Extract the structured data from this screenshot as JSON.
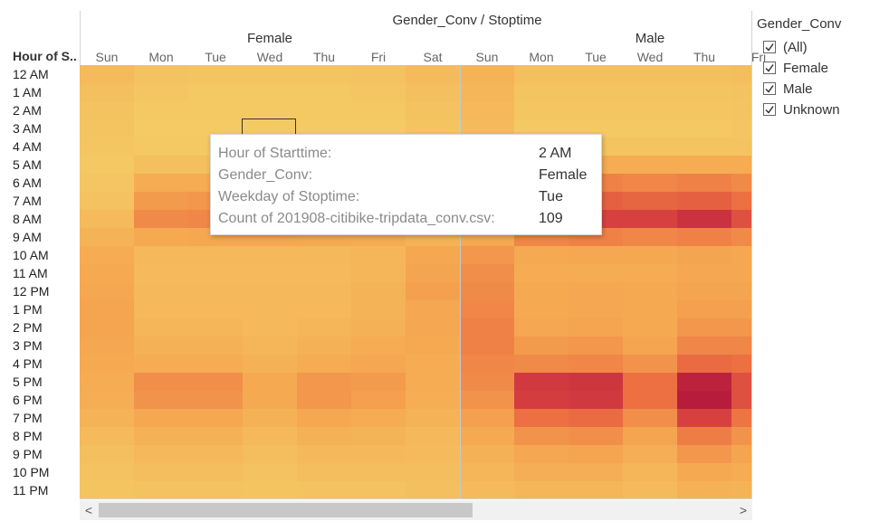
{
  "chart_data": {
    "type": "heatmap",
    "title": "Gender_Conv / Stoptime",
    "row_axis_label": "Hour of S..",
    "groups": [
      {
        "name": "Female",
        "columns": [
          "Sun",
          "Mon",
          "Tue",
          "Wed",
          "Thu",
          "Fri",
          "Sat"
        ]
      },
      {
        "name": "Male",
        "columns": [
          "Sun",
          "Mon",
          "Tue",
          "Wed",
          "Thu",
          "Fri"
        ]
      }
    ],
    "rows": [
      "12 AM",
      "1 AM",
      "2 AM",
      "3 AM",
      "4 AM",
      "5 AM",
      "6 AM",
      "7 AM",
      "8 AM",
      "9 AM",
      "10 AM",
      "11 AM",
      "12 PM",
      "1 PM",
      "2 PM",
      "3 PM",
      "4 PM",
      "5 PM",
      "6 PM",
      "7 PM",
      "8 PM",
      "9 PM",
      "10 PM",
      "11 PM"
    ],
    "intensity_scale": "0 = light yellow (low count), 1 = dark red (high count)",
    "intensity": [
      [
        0.18,
        0.12,
        0.1,
        0.1,
        0.1,
        0.12,
        0.18,
        0.25,
        0.14,
        0.14,
        0.14,
        0.14,
        0.16
      ],
      [
        0.14,
        0.08,
        0.07,
        0.07,
        0.07,
        0.08,
        0.14,
        0.22,
        0.1,
        0.1,
        0.1,
        0.1,
        0.12
      ],
      [
        0.12,
        0.06,
        0.06,
        0.06,
        0.06,
        0.06,
        0.12,
        0.2,
        0.08,
        0.08,
        0.08,
        0.08,
        0.1
      ],
      [
        0.1,
        0.05,
        0.05,
        0.05,
        0.05,
        0.05,
        0.1,
        0.18,
        0.07,
        0.07,
        0.07,
        0.07,
        0.08
      ],
      [
        0.08,
        0.06,
        0.06,
        0.06,
        0.06,
        0.06,
        0.08,
        0.15,
        0.1,
        0.1,
        0.1,
        0.1,
        0.1
      ],
      [
        0.07,
        0.14,
        0.14,
        0.14,
        0.14,
        0.14,
        0.07,
        0.14,
        0.3,
        0.3,
        0.3,
        0.3,
        0.3
      ],
      [
        0.08,
        0.3,
        0.3,
        0.3,
        0.3,
        0.3,
        0.08,
        0.16,
        0.48,
        0.52,
        0.5,
        0.52,
        0.48
      ],
      [
        0.12,
        0.4,
        0.42,
        0.42,
        0.4,
        0.38,
        0.12,
        0.2,
        0.62,
        0.66,
        0.64,
        0.66,
        0.6
      ],
      [
        0.18,
        0.48,
        0.5,
        0.5,
        0.48,
        0.45,
        0.18,
        0.24,
        0.76,
        0.78,
        0.78,
        0.86,
        0.72
      ],
      [
        0.24,
        0.32,
        0.34,
        0.34,
        0.32,
        0.3,
        0.24,
        0.32,
        0.5,
        0.52,
        0.5,
        0.52,
        0.48
      ],
      [
        0.3,
        0.2,
        0.2,
        0.2,
        0.2,
        0.22,
        0.34,
        0.42,
        0.32,
        0.34,
        0.34,
        0.36,
        0.34
      ],
      [
        0.32,
        0.18,
        0.18,
        0.18,
        0.18,
        0.22,
        0.36,
        0.46,
        0.3,
        0.3,
        0.3,
        0.34,
        0.34
      ],
      [
        0.34,
        0.2,
        0.2,
        0.2,
        0.2,
        0.24,
        0.38,
        0.48,
        0.32,
        0.34,
        0.32,
        0.36,
        0.36
      ],
      [
        0.36,
        0.2,
        0.2,
        0.2,
        0.2,
        0.24,
        0.34,
        0.5,
        0.32,
        0.34,
        0.32,
        0.38,
        0.38
      ],
      [
        0.36,
        0.22,
        0.22,
        0.2,
        0.22,
        0.26,
        0.34,
        0.52,
        0.34,
        0.36,
        0.32,
        0.42,
        0.42
      ],
      [
        0.34,
        0.26,
        0.26,
        0.22,
        0.26,
        0.3,
        0.32,
        0.52,
        0.4,
        0.42,
        0.36,
        0.5,
        0.5
      ],
      [
        0.32,
        0.3,
        0.3,
        0.26,
        0.3,
        0.34,
        0.3,
        0.5,
        0.48,
        0.5,
        0.44,
        0.62,
        0.6
      ],
      [
        0.3,
        0.46,
        0.46,
        0.32,
        0.42,
        0.4,
        0.3,
        0.48,
        0.82,
        0.84,
        0.6,
        0.96,
        0.72
      ],
      [
        0.28,
        0.44,
        0.44,
        0.32,
        0.42,
        0.38,
        0.28,
        0.44,
        0.8,
        0.82,
        0.6,
        1.0,
        0.72
      ],
      [
        0.24,
        0.34,
        0.34,
        0.26,
        0.34,
        0.3,
        0.24,
        0.38,
        0.6,
        0.62,
        0.46,
        0.78,
        0.58
      ],
      [
        0.18,
        0.26,
        0.26,
        0.2,
        0.26,
        0.24,
        0.2,
        0.32,
        0.44,
        0.46,
        0.36,
        0.54,
        0.44
      ],
      [
        0.14,
        0.2,
        0.2,
        0.16,
        0.2,
        0.2,
        0.18,
        0.26,
        0.34,
        0.36,
        0.28,
        0.42,
        0.36
      ],
      [
        0.12,
        0.16,
        0.16,
        0.12,
        0.16,
        0.16,
        0.16,
        0.22,
        0.28,
        0.28,
        0.22,
        0.32,
        0.3
      ],
      [
        0.1,
        0.12,
        0.12,
        0.1,
        0.12,
        0.12,
        0.14,
        0.18,
        0.22,
        0.22,
        0.18,
        0.26,
        0.24
      ]
    ],
    "colors": {
      "low": "#f4d068",
      "high": "#b71c3c"
    }
  },
  "tooltip": {
    "rows": [
      {
        "label": "Hour of Starttime:",
        "value": "2 AM"
      },
      {
        "label": "Gender_Conv:",
        "value": "Female"
      },
      {
        "label": "Weekday of Stoptime:",
        "value": "Tue"
      },
      {
        "label": "Count of 201908-citibike-tripdata_conv.csv:",
        "value": "109"
      }
    ]
  },
  "legend": {
    "title": "Gender_Conv",
    "items": [
      {
        "label": "(All)",
        "checked": true
      },
      {
        "label": "Female",
        "checked": true
      },
      {
        "label": "Male",
        "checked": true
      },
      {
        "label": "Unknown",
        "checked": true
      }
    ]
  },
  "scrollbar": {
    "left_arrow": "<",
    "right_arrow": ">"
  }
}
